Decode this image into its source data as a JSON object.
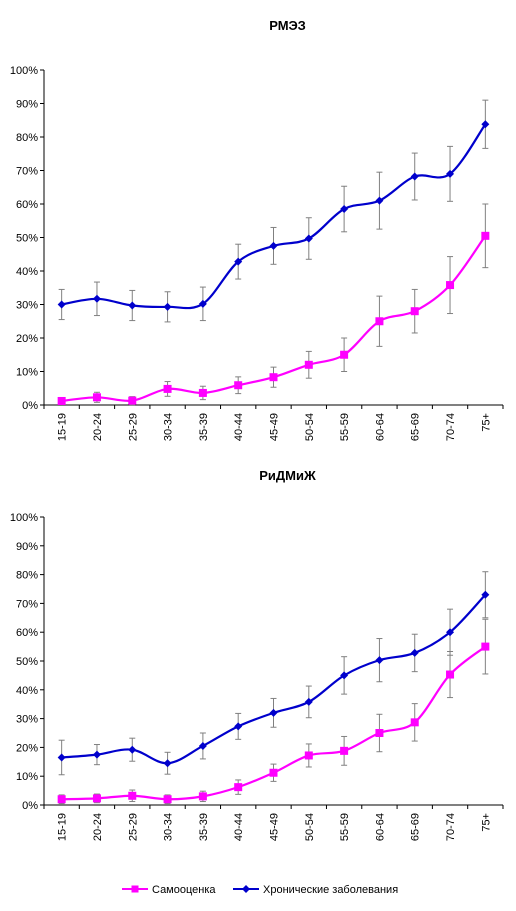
{
  "chart_data": [
    {
      "type": "line",
      "title": "РМЭЗ",
      "categories": [
        "15-19",
        "20-24",
        "25-29",
        "30-34",
        "35-39",
        "40-44",
        "45-49",
        "50-54",
        "55-59",
        "60-64",
        "65-69",
        "70-74",
        "75+"
      ],
      "ylim": [
        0,
        100
      ],
      "yticks": [
        "0%",
        "10%",
        "20%",
        "30%",
        "40%",
        "50%",
        "60%",
        "70%",
        "80%",
        "90%",
        "100%"
      ],
      "series": [
        {
          "name": "Самооценка",
          "color": "#ff00ff",
          "marker": "square",
          "values": [
            1.2,
            2.3,
            1.3,
            4.8,
            3.6,
            5.9,
            8.3,
            12.0,
            15.0,
            25.0,
            28.0,
            35.8,
            50.5
          ],
          "err": [
            1.0,
            1.5,
            1.2,
            2.2,
            2.0,
            2.5,
            3.0,
            4.0,
            5.0,
            7.5,
            6.5,
            8.5,
            9.5
          ]
        },
        {
          "name": "Хронические заболевания",
          "color": "#0000cc",
          "marker": "diamond",
          "values": [
            30.0,
            31.7,
            29.7,
            29.3,
            30.2,
            42.8,
            47.5,
            49.7,
            58.5,
            61.0,
            68.2,
            69.0,
            83.8
          ],
          "err": [
            4.5,
            5.0,
            4.5,
            4.5,
            5.0,
            5.2,
            5.5,
            6.2,
            6.8,
            8.5,
            7.0,
            8.2,
            7.2
          ]
        }
      ]
    },
    {
      "type": "line",
      "title": "РиДМиЖ",
      "categories": [
        "15-19",
        "20-24",
        "25-29",
        "30-34",
        "35-39",
        "40-44",
        "45-49",
        "50-54",
        "55-59",
        "60-64",
        "65-69",
        "70-74",
        "75+"
      ],
      "ylim": [
        0,
        100
      ],
      "yticks": [
        "0%",
        "10%",
        "20%",
        "30%",
        "40%",
        "50%",
        "60%",
        "70%",
        "80%",
        "90%",
        "100%"
      ],
      "series": [
        {
          "name": "Самооценка",
          "color": "#ff00ff",
          "marker": "square",
          "values": [
            2.0,
            2.3,
            3.2,
            2.0,
            3.0,
            6.2,
            11.2,
            17.2,
            18.8,
            25.0,
            28.7,
            45.3,
            55.0
          ],
          "err": [
            1.5,
            1.5,
            2.0,
            1.5,
            1.8,
            2.5,
            3.0,
            4.0,
            5.0,
            6.5,
            6.5,
            8.0,
            9.5
          ]
        },
        {
          "name": "Хронические заболевания",
          "color": "#0000cc",
          "marker": "diamond",
          "values": [
            16.5,
            17.5,
            19.2,
            14.5,
            20.5,
            27.3,
            32.0,
            35.8,
            45.0,
            50.3,
            52.8,
            60.0,
            73.0
          ],
          "err": [
            6.0,
            3.5,
            4.0,
            3.8,
            4.5,
            4.5,
            5.0,
            5.5,
            6.5,
            7.5,
            6.5,
            8.0,
            8.0
          ]
        }
      ]
    }
  ],
  "legend": {
    "items": [
      {
        "label": "Самооценка",
        "color": "#ff00ff",
        "marker": "square"
      },
      {
        "label": "Хронические заболевания",
        "color": "#0000cc",
        "marker": "diamond"
      }
    ]
  }
}
